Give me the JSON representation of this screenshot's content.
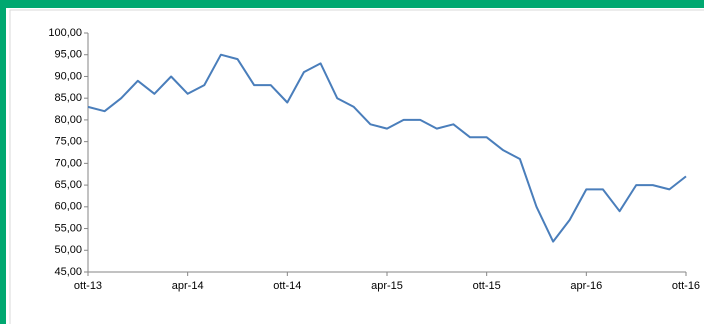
{
  "chart_data": {
    "type": "line",
    "categories": [
      "ott-13",
      null,
      null,
      null,
      null,
      null,
      "apr-14",
      null,
      null,
      null,
      null,
      null,
      "ott-14",
      null,
      null,
      null,
      null,
      null,
      "apr-15",
      null,
      null,
      null,
      null,
      null,
      "ott-15",
      null,
      null,
      null,
      null,
      null,
      "apr-16",
      null,
      null,
      null,
      null,
      null,
      "ott-16"
    ],
    "values": [
      83,
      82,
      85,
      89,
      86,
      90,
      86,
      88,
      95,
      94,
      88,
      88,
      84,
      91,
      93,
      85,
      83,
      79,
      78,
      80,
      80,
      78,
      79,
      76,
      76,
      73,
      71,
      60,
      52,
      57,
      64,
      64,
      59,
      65,
      65,
      64,
      67
    ],
    "color": "#4a7ebb",
    "ylim": [
      45,
      100
    ],
    "yticks": [
      {
        "value": 45,
        "label": "45,00"
      },
      {
        "value": 50,
        "label": "50,00"
      },
      {
        "value": 55,
        "label": "55,00"
      },
      {
        "value": 60,
        "label": "60,00"
      },
      {
        "value": 65,
        "label": "65,00"
      },
      {
        "value": 70,
        "label": "70,00"
      },
      {
        "value": 75,
        "label": "75,00"
      },
      {
        "value": 80,
        "label": "80,00"
      },
      {
        "value": 85,
        "label": "85,00"
      },
      {
        "value": 90,
        "label": "90,00"
      },
      {
        "value": 95,
        "label": "95,00"
      },
      {
        "value": 100,
        "label": "100,00"
      }
    ],
    "grid": false
  }
}
